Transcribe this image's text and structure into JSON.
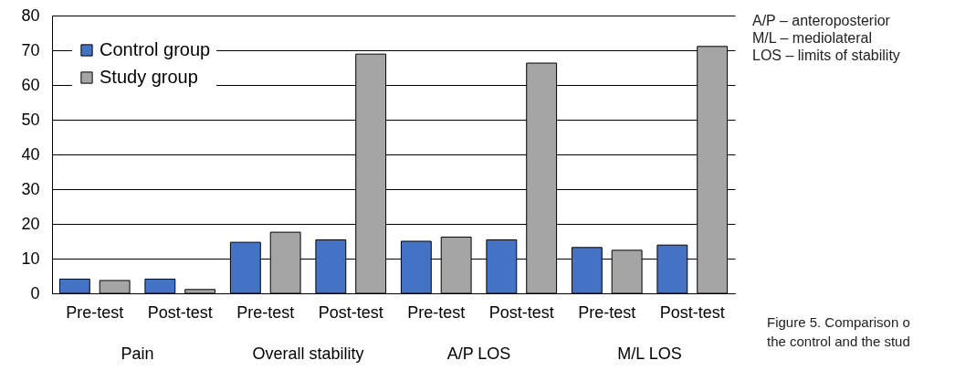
{
  "chart_data": {
    "type": "bar",
    "categories": [
      "Pre-test",
      "Post-test",
      "Pre-test",
      "Post-test",
      "Pre-test",
      "Post-test",
      "Pre-test",
      "Post-test"
    ],
    "series": [
      {
        "name": "Control group",
        "color": "#4472c4",
        "values": [
          4.1,
          4.1,
          14.7,
          15.4,
          15.0,
          15.4,
          13.2,
          13.9
        ]
      },
      {
        "name": "Study group",
        "color": "#a5a5a5",
        "values": [
          3.7,
          1.1,
          17.6,
          68.9,
          16.2,
          66.3,
          12.4,
          71.1
        ]
      }
    ],
    "ylim": [
      0,
      80
    ],
    "yticks": [
      0,
      10,
      20,
      30,
      40,
      50,
      60,
      70,
      80
    ],
    "grid": "y",
    "legend": "top left",
    "annotations": [
      "Pain",
      "Overall stability",
      "A/P LOS",
      "M/L LOS",
      "A/P – anteroposterior",
      "M/L – mediolateral",
      "LOS – limits of stability",
      "Figure 5. Comparison o",
      "the control and the stud"
    ]
  }
}
